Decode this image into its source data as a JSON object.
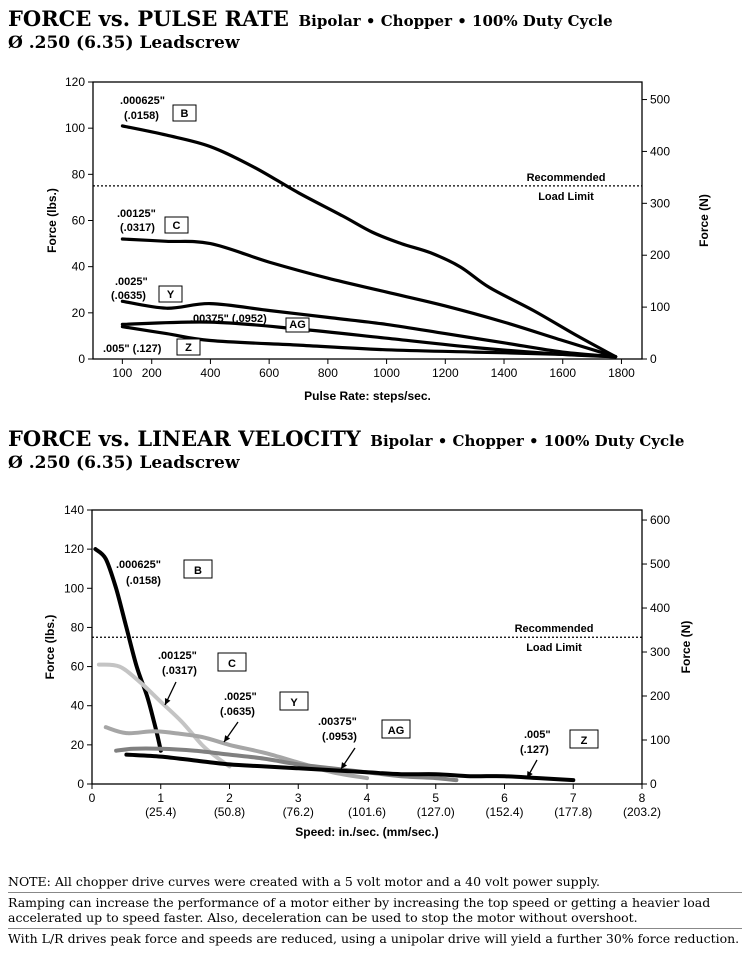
{
  "chart_data": [
    {
      "type": "line",
      "title": "FORCE vs. PULSE RATE",
      "subtitle": "Bipolar • Chopper • 100% Duty Cycle",
      "title_line2": "Ø .250 (6.35) Leadscrew",
      "xlabel": "Pulse Rate:  steps/sec.",
      "ylabel": "Force (lbs.)",
      "y2label": "Force (N)",
      "xlim": [
        0,
        1870
      ],
      "ylim": [
        0,
        120
      ],
      "y2lim": [
        0,
        533.8
      ],
      "x_ticks": [
        "100",
        "200",
        "400",
        "600",
        "800",
        "1000",
        "1200",
        "1400",
        "1600",
        "1800"
      ],
      "x_tick_values": [
        100,
        200,
        400,
        600,
        800,
        1000,
        1200,
        1400,
        1600,
        1800
      ],
      "y_ticks": [
        0,
        20,
        40,
        60,
        80,
        100,
        120
      ],
      "y2_ticks": [
        0,
        100,
        200,
        300,
        400,
        500
      ],
      "reference_line": {
        "y": 75,
        "style": "dotted",
        "label_lines": [
          "Recommended",
          "Load Limit"
        ]
      },
      "grid": false,
      "series": [
        {
          "name": "B",
          "color": "#000000",
          "label_lines": [
            ".000625\"",
            "(.0158)"
          ],
          "points": [
            [
              100,
              101
            ],
            [
              250,
              97
            ],
            [
              400,
              92
            ],
            [
              550,
              83
            ],
            [
              700,
              72
            ],
            [
              850,
              62
            ],
            [
              950,
              55
            ],
            [
              1050,
              50
            ],
            [
              1150,
              46
            ],
            [
              1250,
              40
            ],
            [
              1350,
              31
            ],
            [
              1500,
              21
            ],
            [
              1650,
              10
            ],
            [
              1780,
              1
            ]
          ]
        },
        {
          "name": "C",
          "color": "#000000",
          "label_lines": [
            ".00125\"",
            "(.0317)"
          ],
          "points": [
            [
              100,
              52
            ],
            [
              250,
              51
            ],
            [
              400,
              50
            ],
            [
              600,
              42
            ],
            [
              800,
              35
            ],
            [
              1000,
              29
            ],
            [
              1200,
              23
            ],
            [
              1400,
              16
            ],
            [
              1600,
              8
            ],
            [
              1780,
              1
            ]
          ]
        },
        {
          "name": "Y",
          "color": "#000000",
          "label_lines": [
            ".0025\"",
            "(.0635)"
          ],
          "points": [
            [
              100,
              25
            ],
            [
              250,
              22
            ],
            [
              400,
              24
            ],
            [
              600,
              21
            ],
            [
              800,
              18
            ],
            [
              1000,
              15
            ],
            [
              1200,
              11
            ],
            [
              1400,
              7
            ],
            [
              1600,
              3
            ],
            [
              1780,
              1
            ]
          ]
        },
        {
          "name": "AG",
          "color": "#000000",
          "label_lines": [
            ".00375\" (.0952)"
          ],
          "points": [
            [
              100,
              15
            ],
            [
              400,
              16
            ],
            [
              700,
              13
            ],
            [
              1000,
              9
            ],
            [
              1300,
              5
            ],
            [
              1600,
              2
            ],
            [
              1780,
              1
            ]
          ]
        },
        {
          "name": "Z",
          "color": "#000000",
          "label_lines": [
            ".005\" (.127)"
          ],
          "points": [
            [
              100,
              14
            ],
            [
              250,
              11
            ],
            [
              400,
              8
            ],
            [
              700,
              6
            ],
            [
              1000,
              4
            ],
            [
              1300,
              3
            ],
            [
              1600,
              2
            ],
            [
              1780,
              1
            ]
          ]
        }
      ]
    },
    {
      "type": "line",
      "title": "FORCE vs. LINEAR VELOCITY",
      "subtitle": "Bipolar • Chopper • 100% Duty Cycle",
      "title_line2": "Ø .250 (6.35) Leadscrew",
      "xlabel": "Speed:  in./sec.  (mm/sec.)",
      "ylabel": "Force (lbs.)",
      "y2label": "Force (N)",
      "xlim": [
        0,
        8
      ],
      "ylim": [
        0,
        140
      ],
      "y2lim": [
        0,
        622.8
      ],
      "x_ticks": [
        "0",
        "1",
        "2",
        "3",
        "4",
        "5",
        "6",
        "7",
        "8"
      ],
      "x_tick_values": [
        0,
        1,
        2,
        3,
        4,
        5,
        6,
        7,
        8
      ],
      "x_ticks_mm": [
        "(25.4)",
        "(50.8)",
        "(76.2)",
        "(101.6)",
        "(127.0)",
        "(152.4)",
        "(177.8)",
        "(203.2)"
      ],
      "y_ticks": [
        0,
        20,
        40,
        60,
        80,
        100,
        120,
        140
      ],
      "y2_ticks": [
        0,
        100,
        200,
        300,
        400,
        500,
        600
      ],
      "reference_line": {
        "y": 75,
        "style": "dotted",
        "label_lines": [
          "Recommended",
          "Load Limit"
        ]
      },
      "grid": false,
      "series": [
        {
          "name": "B",
          "color": "#000000",
          "label_lines": [
            ".000625\"",
            "(.0158)"
          ],
          "points": [
            [
              0.05,
              120
            ],
            [
              0.2,
              115
            ],
            [
              0.35,
              100
            ],
            [
              0.5,
              80
            ],
            [
              0.65,
              60
            ],
            [
              0.8,
              45
            ],
            [
              0.9,
              32
            ],
            [
              0.95,
              25
            ],
            [
              1.0,
              17
            ]
          ]
        },
        {
          "name": "C",
          "color": "#c4c4c4",
          "label_lines": [
            ".00125\"",
            "(.0317)"
          ],
          "points": [
            [
              0.1,
              61
            ],
            [
              0.4,
              60
            ],
            [
              0.7,
              52
            ],
            [
              1.0,
              42
            ],
            [
              1.3,
              32
            ],
            [
              1.6,
              20
            ],
            [
              1.8,
              14
            ],
            [
              2.0,
              9
            ]
          ]
        },
        {
          "name": "Y",
          "color": "#a6a6a6",
          "label_lines": [
            ".0025\"",
            "(.0635)"
          ],
          "points": [
            [
              0.2,
              29
            ],
            [
              0.5,
              26
            ],
            [
              0.9,
              27
            ],
            [
              1.2,
              26
            ],
            [
              1.6,
              24
            ],
            [
              2.0,
              20
            ],
            [
              2.5,
              16
            ],
            [
              3.0,
              11
            ],
            [
              3.5,
              6
            ],
            [
              4.0,
              3
            ]
          ]
        },
        {
          "name": "AG",
          "color": "#808080",
          "label_lines": [
            ".00375\"",
            "(.0953)"
          ],
          "points": [
            [
              0.35,
              17
            ],
            [
              0.6,
              18
            ],
            [
              1.0,
              18
            ],
            [
              1.5,
              17
            ],
            [
              2.0,
              15
            ],
            [
              2.5,
              13
            ],
            [
              3.0,
              10
            ],
            [
              3.5,
              8
            ],
            [
              4.0,
              6
            ],
            [
              4.5,
              4
            ],
            [
              5.0,
              3
            ],
            [
              5.3,
              2
            ]
          ]
        },
        {
          "name": "Z",
          "color": "#000000",
          "label_lines": [
            ".005\"",
            "(.127)"
          ],
          "points": [
            [
              0.5,
              15
            ],
            [
              1.0,
              14
            ],
            [
              1.5,
              12
            ],
            [
              2.0,
              10
            ],
            [
              2.5,
              9
            ],
            [
              3.0,
              8
            ],
            [
              3.5,
              7
            ],
            [
              4.0,
              6
            ],
            [
              4.5,
              5
            ],
            [
              5.0,
              5
            ],
            [
              5.5,
              4
            ],
            [
              6.0,
              4
            ],
            [
              6.5,
              3
            ],
            [
              7.0,
              2
            ]
          ]
        }
      ]
    }
  ],
  "notes": [
    "NOTE: All chopper drive curves were created with a 5 volt motor and a 40 volt power supply.",
    "Ramping can increase the performance of a motor either by increasing the top speed or getting a heavier load accelerated up to speed faster.  Also, deceleration can be used to stop the motor without overshoot.",
    "With L/R drives peak force and speeds are reduced, using a unipolar drive will yield a further 30% force reduction."
  ]
}
